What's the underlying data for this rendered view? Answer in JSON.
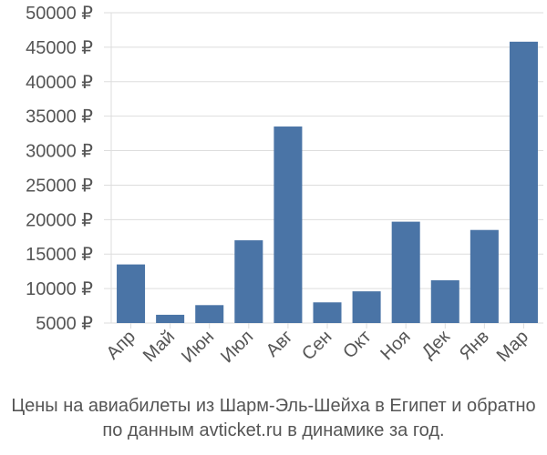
{
  "chart_data": {
    "type": "bar",
    "categories": [
      "Апр",
      "Май",
      "Июн",
      "Июл",
      "Авг",
      "Сен",
      "Окт",
      "Ноя",
      "Дек",
      "Янв",
      "Мар"
    ],
    "values": [
      13500,
      6200,
      7600,
      17000,
      33500,
      8000,
      9600,
      19700,
      11200,
      18500,
      45800
    ],
    "ylim": [
      5000,
      50000
    ],
    "yticks": [
      "5000 ₽",
      "10000 ₽",
      "15000 ₽",
      "20000 ₽",
      "25000 ₽",
      "30000 ₽",
      "35000 ₽",
      "40000 ₽",
      "45000 ₽",
      "50000 ₽"
    ],
    "ytick_values": [
      5000,
      10000,
      15000,
      20000,
      25000,
      30000,
      35000,
      40000,
      45000,
      50000
    ],
    "bar_color": "#4a74a6",
    "grid": "y",
    "legend": "none"
  },
  "caption": {
    "line1": "Цены на авиабилеты из Шарм-Эль-Шейха в Египет и обратно",
    "line2": "по данным avticket.ru в динамике за год."
  }
}
